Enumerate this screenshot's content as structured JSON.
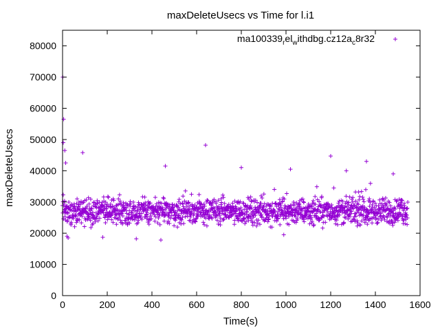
{
  "chart_data": {
    "type": "scatter",
    "title": "maxDeleteUsecs vs Time for l.i1",
    "xlabel": "Time(s)",
    "ylabel": "maxDeleteUsecs",
    "xlim": [
      0,
      1600
    ],
    "ylim": [
      0,
      85000
    ],
    "xticks": [
      0,
      200,
      400,
      600,
      800,
      1000,
      1200,
      1400,
      1600
    ],
    "yticks": [
      0,
      10000,
      20000,
      30000,
      40000,
      50000,
      60000,
      70000,
      80000
    ],
    "grid": false,
    "legend_position": "top-right",
    "marker": "plus",
    "series": [
      {
        "name": "ma100339_rel_withdbg.cz12a_c8r32",
        "legend_parts": [
          {
            "text": "ma100339",
            "shift": "base"
          },
          {
            "text": "r",
            "shift": "sub"
          },
          {
            "text": "el",
            "shift": "base"
          },
          {
            "text": "w",
            "shift": "sub"
          },
          {
            "text": "ithdbg.cz12a",
            "shift": "base"
          },
          {
            "text": "c",
            "shift": "sub"
          },
          {
            "text": "8r32",
            "shift": "base"
          }
        ],
        "color": "#9400d3",
        "x_range": [
          0,
          1545
        ],
        "sample_interval": 1,
        "baseline_min": 21000,
        "baseline_max": 33000,
        "outliers": [
          {
            "x": 1,
            "y": 70000
          },
          {
            "x": 5,
            "y": 56500
          },
          {
            "x": 3,
            "y": 49000
          },
          {
            "x": 10,
            "y": 46500
          },
          {
            "x": 14,
            "y": 42500
          },
          {
            "x": 90,
            "y": 45800
          },
          {
            "x": 20,
            "y": 19000
          },
          {
            "x": 25,
            "y": 18500
          },
          {
            "x": 640,
            "y": 48200
          },
          {
            "x": 1200,
            "y": 44700
          },
          {
            "x": 1360,
            "y": 43000
          },
          {
            "x": 460,
            "y": 41500
          },
          {
            "x": 800,
            "y": 41000
          },
          {
            "x": 1020,
            "y": 40500
          },
          {
            "x": 1270,
            "y": 40000
          },
          {
            "x": 1480,
            "y": 39000
          },
          {
            "x": 440,
            "y": 17800
          },
          {
            "x": 990,
            "y": 19500
          },
          {
            "x": 330,
            "y": 18200
          },
          {
            "x": 180,
            "y": 18700
          }
        ]
      }
    ]
  }
}
